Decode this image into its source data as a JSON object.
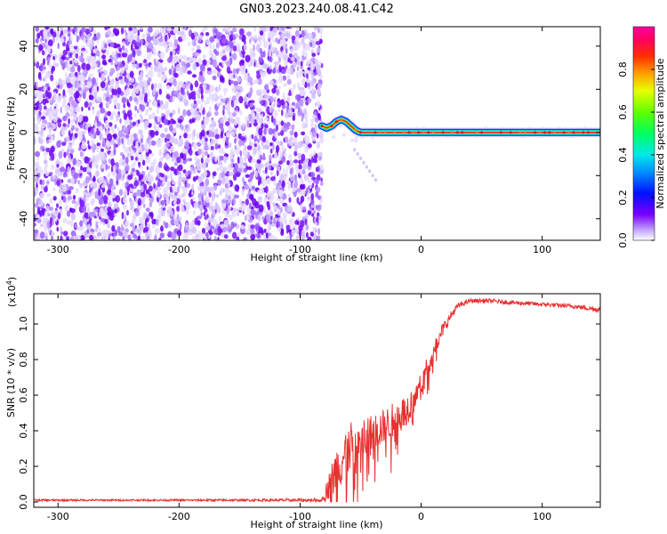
{
  "title": "GN03.2023.240.08.41.C42",
  "chart_data": [
    {
      "type": "heatmap",
      "xlabel": "Height of straight line (km)",
      "ylabel": "Frequency (Hz)",
      "xlim": [
        -320,
        148
      ],
      "ylim": [
        -50,
        49
      ],
      "xticks": [
        -300,
        -200,
        -100,
        0,
        100
      ],
      "yticks": [
        -40,
        -20,
        0,
        20,
        40
      ],
      "noise_region_x": [
        -320,
        -82
      ],
      "signal_track": {
        "x": [
          -82,
          -78,
          -74,
          -70,
          -66,
          -62,
          -58,
          -54,
          -50,
          -46,
          -40,
          -30,
          -20,
          -10,
          0,
          10,
          20,
          40,
          60,
          80,
          100,
          120,
          148
        ],
        "y": [
          3,
          2,
          3,
          5,
          6,
          5,
          3,
          1,
          0,
          0,
          0,
          0,
          0,
          0,
          0,
          0,
          0,
          0,
          0,
          0,
          0,
          0,
          0
        ]
      },
      "colorbar": {
        "label": "Normalized spectral amplitude",
        "range": [
          0.0,
          1.0
        ],
        "ticks": [
          "0.0",
          "0.2",
          "0.4",
          "0.6",
          "0.8"
        ],
        "tick_values": [
          0.0,
          0.2,
          0.4,
          0.6,
          0.8
        ]
      }
    },
    {
      "type": "line",
      "xlabel": "Height of straight line (km)",
      "ylabel": "SNR (10 * v/v)",
      "scale_label": "(x10",
      "scale_exp": "4",
      "scale_close": ")",
      "xlim": [
        -320,
        148
      ],
      "ylim": [
        -0.03,
        1.17
      ],
      "xticks": [
        -300,
        -200,
        -100,
        0,
        100
      ],
      "yticks": [
        "0.0",
        "0.2",
        "0.4",
        "0.6",
        "0.8",
        "1.0"
      ],
      "ytick_values": [
        0.0,
        0.2,
        0.4,
        0.6,
        0.8,
        1.0
      ],
      "color": "#e83030",
      "series": [
        {
          "x": [
            -320,
            -250,
            -150,
            -82,
            -72,
            -62,
            -52,
            -42,
            -32,
            -22,
            -12,
            -6,
            0,
            6,
            12,
            18,
            25,
            30,
            40,
            55,
            75,
            100,
            125,
            148
          ],
          "y": [
            0.01,
            0.01,
            0.01,
            0.01,
            0.15,
            0.28,
            0.33,
            0.37,
            0.42,
            0.46,
            0.52,
            0.58,
            0.66,
            0.78,
            0.88,
            0.97,
            1.05,
            1.1,
            1.13,
            1.13,
            1.12,
            1.11,
            1.1,
            1.08
          ],
          "noise": [
            0.005,
            0.005,
            0.006,
            0.01,
            0.12,
            0.16,
            0.14,
            0.12,
            0.1,
            0.1,
            0.09,
            0.08,
            0.06,
            0.06,
            0.05,
            0.04,
            0.025,
            0.015,
            0.012,
            0.012,
            0.012,
            0.012,
            0.012,
            0.015
          ]
        }
      ]
    }
  ]
}
